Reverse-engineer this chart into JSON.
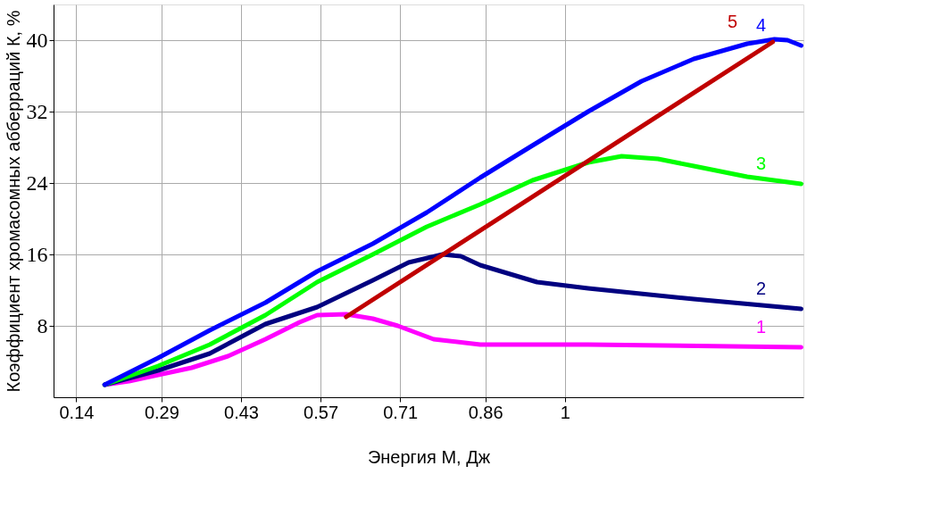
{
  "chart_data": {
    "type": "line",
    "xlabel": "Энергия М, Дж",
    "ylabel": "Коэффициент хромасомных абберраций К, %",
    "xlim": [
      0.1,
      1.42
    ],
    "xticks": [
      0.14,
      0.29,
      0.43,
      0.57,
      0.71,
      0.86,
      {
        "value": 1,
        "label": "1"
      }
    ],
    "ylim": [
      0,
      44
    ],
    "yticks": [
      8,
      16,
      24,
      32,
      40
    ],
    "grid": true,
    "legend": false,
    "marker": "none",
    "line_style": "solid",
    "series": [
      {
        "name": "1",
        "color": "#ff00ff",
        "x": [
          0.19,
          0.233,
          0.284,
          0.343,
          0.407,
          0.473,
          0.533,
          0.564,
          0.615,
          0.662,
          0.706,
          0.769,
          0.851,
          1.041,
          1.416
        ],
        "values": [
          1.4,
          1.8,
          2.5,
          3.3,
          4.6,
          6.5,
          8.4,
          9.2,
          9.3,
          8.8,
          8.0,
          6.5,
          5.9,
          5.9,
          5.6
        ]
      },
      {
        "name": "2",
        "color": "#000080",
        "x": [
          0.19,
          0.284,
          0.375,
          0.473,
          0.564,
          0.662,
          0.725,
          0.785,
          0.817,
          0.851,
          0.951,
          1.041,
          1.227,
          1.416
        ],
        "values": [
          1.4,
          3.0,
          4.9,
          8.2,
          10.1,
          13.1,
          15.1,
          16.0,
          15.8,
          14.8,
          12.9,
          12.2,
          11.0,
          9.9
        ]
      },
      {
        "name": "3",
        "color": "#00ff00",
        "x": [
          0.19,
          0.284,
          0.375,
          0.473,
          0.564,
          0.662,
          0.757,
          0.851,
          0.943,
          1.041,
          1.1,
          1.164,
          1.227,
          1.321,
          1.416
        ],
        "values": [
          1.4,
          3.5,
          5.9,
          9.2,
          12.9,
          16.0,
          19.1,
          21.6,
          24.3,
          26.3,
          27.0,
          26.7,
          25.9,
          24.7,
          23.9
        ]
      },
      {
        "name": "4",
        "color": "#0000ff",
        "x": [
          0.19,
          0.284,
          0.375,
          0.473,
          0.564,
          0.662,
          0.757,
          0.851,
          0.943,
          1.041,
          1.135,
          1.227,
          1.321,
          1.369,
          1.392,
          1.416
        ],
        "values": [
          1.4,
          4.4,
          7.5,
          10.6,
          14.1,
          17.2,
          20.7,
          24.6,
          28.2,
          32.0,
          35.4,
          37.9,
          39.6,
          40.1,
          40.0,
          39.4
        ]
      },
      {
        "name": "5",
        "color": "#c00000",
        "x": [
          0.615,
          1.366
        ],
        "values": [
          9.0,
          39.8
        ]
      }
    ]
  }
}
